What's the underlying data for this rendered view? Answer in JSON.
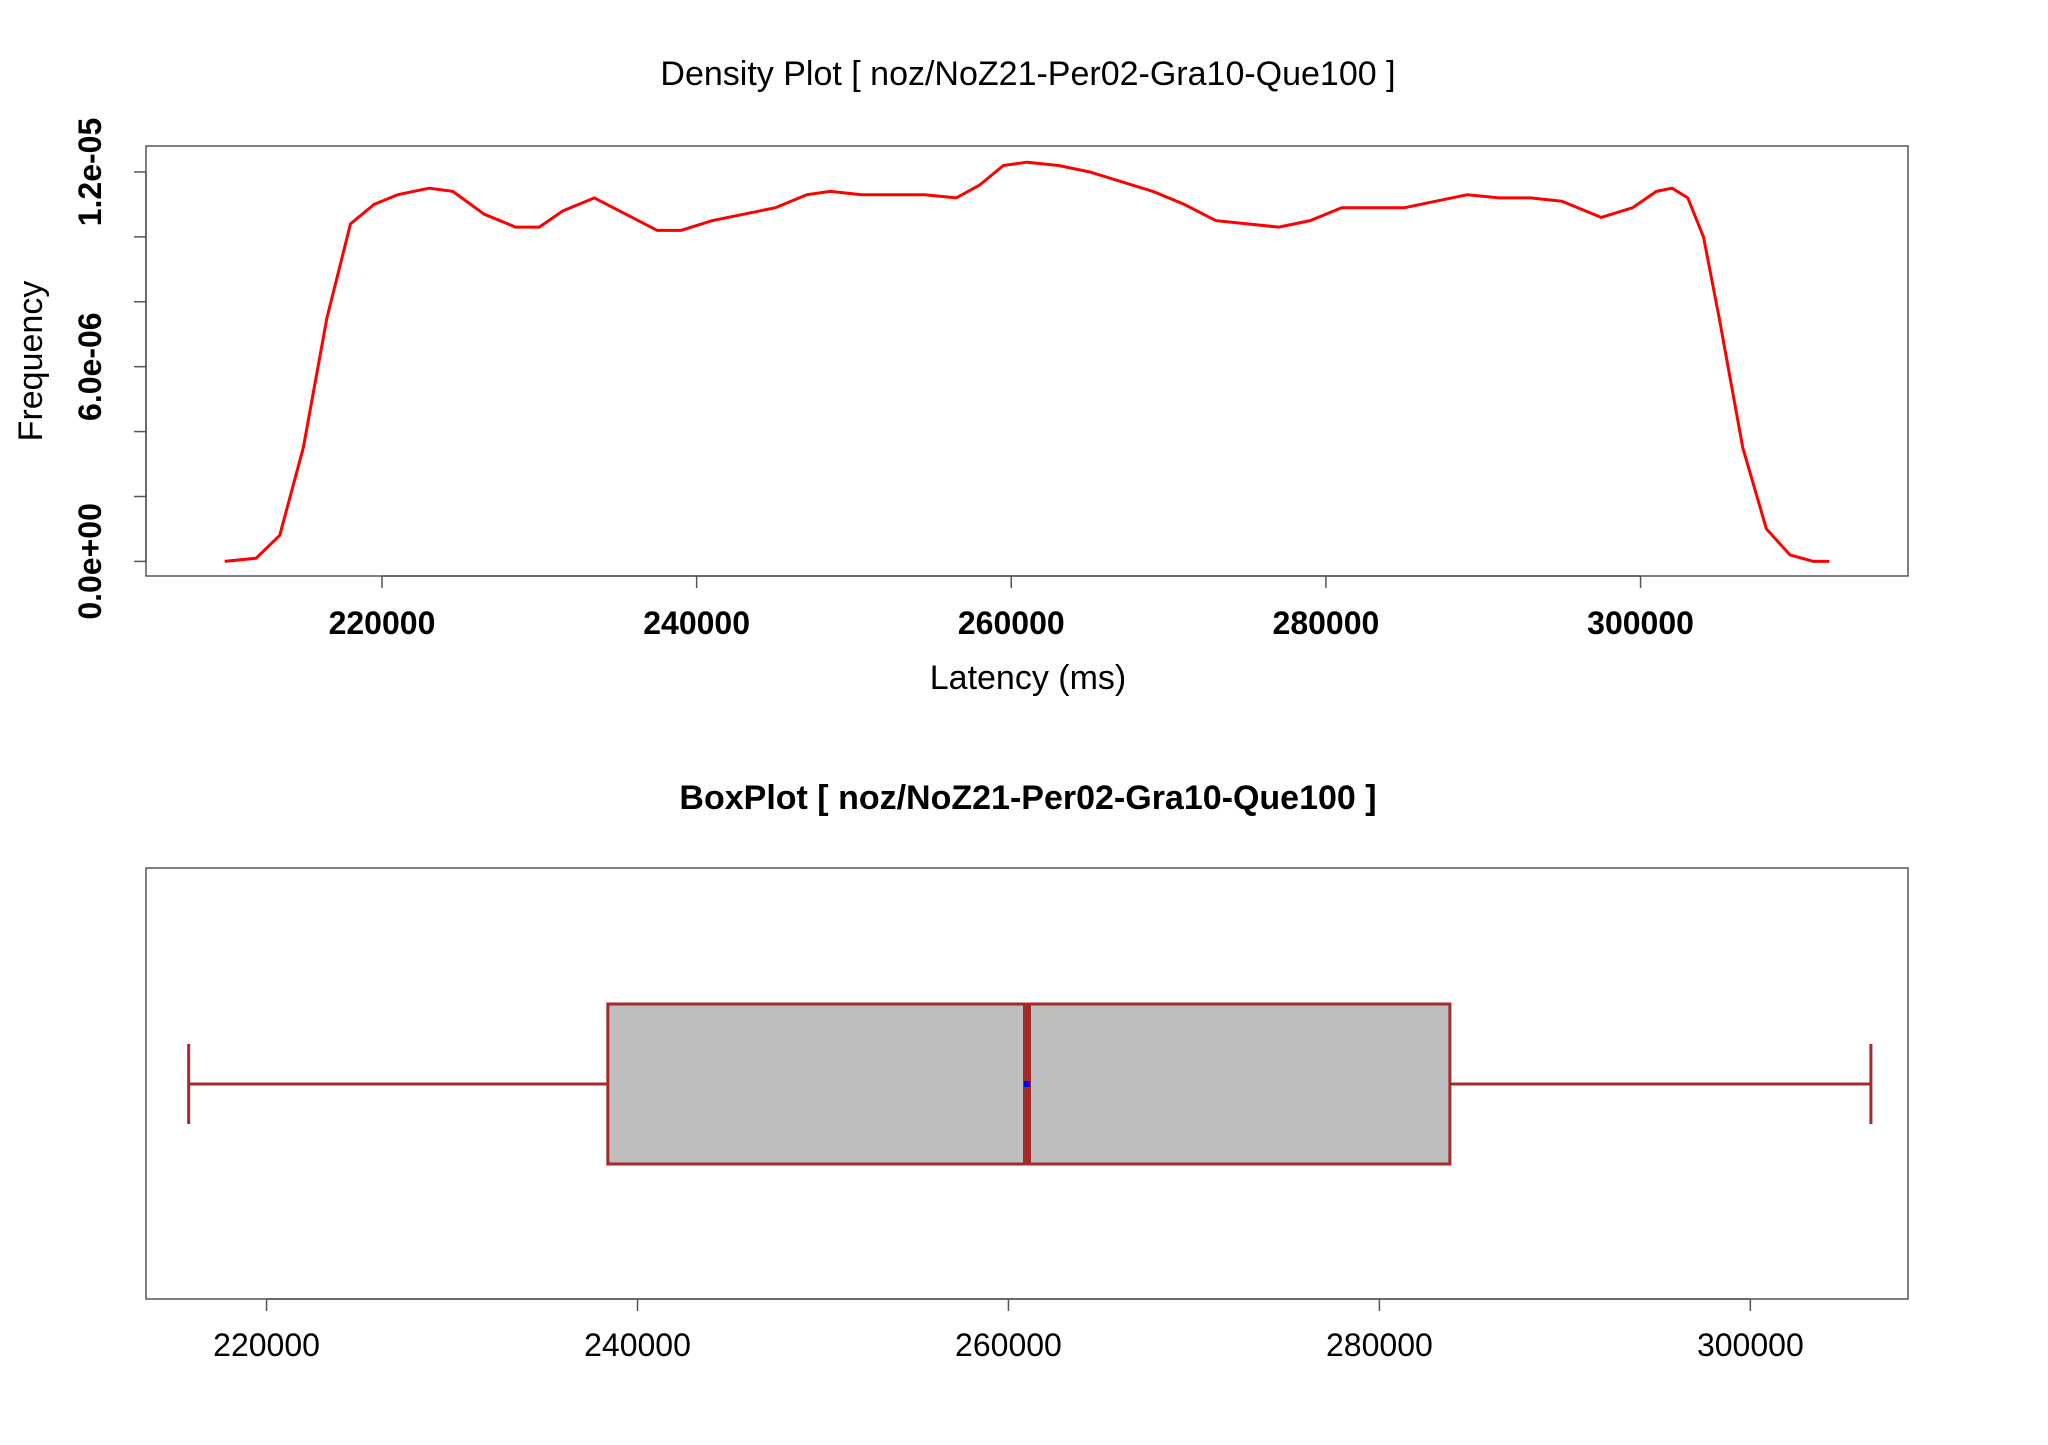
{
  "chart_data": [
    {
      "type": "line",
      "title": "Density Plot [ noz/NoZ21-Per02-Gra10-Que100 ]",
      "xlabel": "Latency (ms)",
      "ylabel": "Frequency",
      "xlim": [
        205000,
        317000
      ],
      "ylim": [
        -4.5e-07,
        1.28e-05
      ],
      "x_ticks": [
        220000,
        240000,
        260000,
        280000,
        300000
      ],
      "x_tick_labels": [
        "220000",
        "240000",
        "260000",
        "280000",
        "300000"
      ],
      "y_ticks": [
        0,
        2e-06,
        4e-06,
        6e-06,
        8e-06,
        1e-05,
        1.2e-05
      ],
      "y_tick_labels": [
        {
          "value": 0,
          "label": "0.0e+00"
        },
        {
          "value": 6e-06,
          "label": "6.0e-06"
        },
        {
          "value": 1.2e-05,
          "label": "1.2e-05"
        }
      ],
      "grid": false,
      "line_color": "#ff0000",
      "series": [
        {
          "x": [
            210000,
            212000,
            213500,
            215000,
            216500,
            218000,
            219500,
            221000,
            223000,
            224500,
            226500,
            228500,
            230000,
            231500,
            233500,
            235500,
            237500,
            239000,
            241000,
            243000,
            245000,
            247000,
            248500,
            250500,
            252500,
            254500,
            256500,
            258000,
            259500,
            261000,
            263000,
            265000,
            267000,
            269000,
            271000,
            273000,
            275000,
            277000,
            279000,
            281000,
            283000,
            285000,
            287000,
            289000,
            291000,
            293000,
            295000,
            297500,
            299500,
            301000,
            302000,
            303000,
            304000,
            305000,
            306500,
            308000,
            309500,
            311000,
            312000
          ],
          "y": [
            0.0,
            1e-07,
            8e-07,
            3.5e-06,
            7.5e-06,
            1.04e-05,
            1.1e-05,
            1.13e-05,
            1.15e-05,
            1.14e-05,
            1.07e-05,
            1.03e-05,
            1.03e-05,
            1.08e-05,
            1.12e-05,
            1.07e-05,
            1.02e-05,
            1.02e-05,
            1.05e-05,
            1.07e-05,
            1.09e-05,
            1.13e-05,
            1.14e-05,
            1.13e-05,
            1.13e-05,
            1.13e-05,
            1.12e-05,
            1.16e-05,
            1.22e-05,
            1.23e-05,
            1.22e-05,
            1.2e-05,
            1.17e-05,
            1.14e-05,
            1.1e-05,
            1.05e-05,
            1.04e-05,
            1.03e-05,
            1.05e-05,
            1.09e-05,
            1.09e-05,
            1.09e-05,
            1.11e-05,
            1.13e-05,
            1.12e-05,
            1.12e-05,
            1.11e-05,
            1.06e-05,
            1.09e-05,
            1.14e-05,
            1.15e-05,
            1.12e-05,
            1e-05,
            7.5e-06,
            3.5e-06,
            1e-06,
            2e-07,
            0.0,
            0.0
          ]
        }
      ]
    },
    {
      "type": "box",
      "title": "BoxPlot [ noz/NoZ21-Per02-Gra10-Que100 ]",
      "orientation": "horizontal",
      "xlim": [
        213500,
        308500
      ],
      "x_ticks": [
        220000,
        240000,
        260000,
        280000,
        300000
      ],
      "x_tick_labels": [
        "220000",
        "240000",
        "260000",
        "280000",
        "300000"
      ],
      "min": 215800,
      "q1": 238400,
      "median": 261000,
      "q3": 283800,
      "max": 306500,
      "mean": 261000,
      "box_fill": "#bebebe",
      "box_stroke": "#a52a2a",
      "mean_color": "#0000ff"
    }
  ]
}
